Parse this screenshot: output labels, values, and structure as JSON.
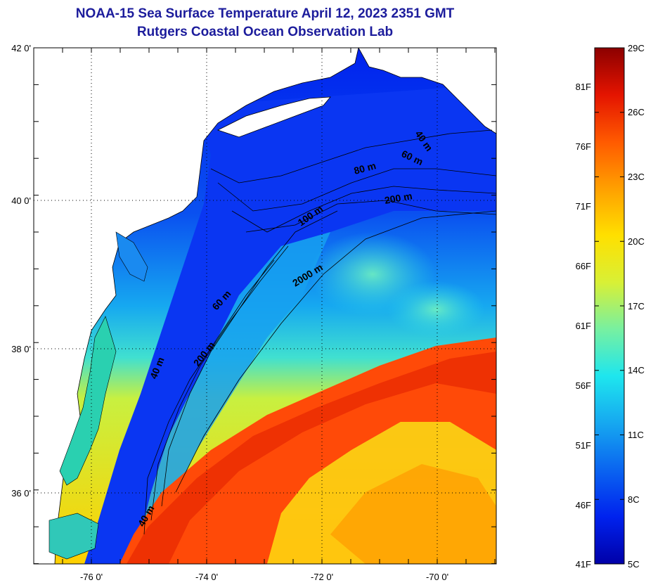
{
  "title": {
    "line1": "NOAA-15 Sea Surface Temperature April 12, 2023 2351 GMT",
    "line2": "Rutgers Coastal Ocean Observation Lab"
  },
  "map": {
    "lat_labels": [
      "42 0'",
      "40 0'",
      "38 0'",
      "36 0'"
    ],
    "lon_labels": [
      "-76 0'",
      "-74 0'",
      "-72 0'",
      "-70 0'"
    ],
    "lat_range": [
      35.0,
      42.0
    ],
    "lon_range": [
      -77.0,
      -69.0
    ],
    "grid": "dotted",
    "land_color": "#ffffff",
    "contour_labels": [
      "40 m",
      "60 m",
      "80 m",
      "200 m",
      "100 m",
      "2000 m",
      "60 m",
      "40 m",
      "200 m",
      "40 m"
    ]
  },
  "colorbar": {
    "celsius_labels": [
      "29C",
      "26C",
      "23C",
      "20C",
      "17C",
      "14C",
      "11C",
      "8C",
      "5C"
    ],
    "fahrenheit_labels": [
      "81F",
      "76F",
      "71F",
      "66F",
      "61F",
      "56F",
      "51F",
      "46F",
      "41F"
    ],
    "celsius_range": [
      5,
      29
    ],
    "colors": [
      "#0000a8",
      "#0022ee",
      "#0a64f0",
      "#16a8f0",
      "#1ee6ee",
      "#78f0a0",
      "#d8f036",
      "#ffe000",
      "#ffa000",
      "#ff5a00",
      "#e41400",
      "#8c0000"
    ]
  }
}
